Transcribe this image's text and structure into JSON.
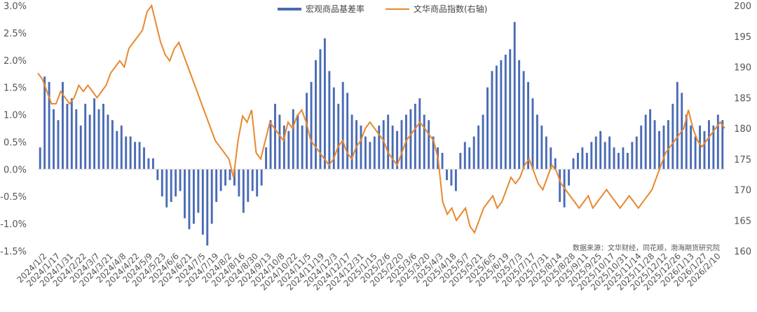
{
  "chart_data": {
    "type": "bar+line",
    "source_note": "数据来源：文华财经，同花顺，渤海期货研究院",
    "legend": {
      "placement": "top-center",
      "items": [
        "宏观商品基差率",
        "文华商品指数(右轴)"
      ]
    },
    "colors": {
      "bar": "#4a6bb5",
      "line": "#e8882e",
      "axis": "#d9d9d9"
    },
    "y_left": {
      "range": [
        -0.015,
        0.03
      ],
      "ticks": [
        -0.015,
        -0.01,
        -0.005,
        0,
        0.005,
        0.01,
        0.015,
        0.02,
        0.025,
        0.03
      ],
      "tick_labels": [
        "-1.5%",
        "-1.0%",
        "-0.5%",
        "0.0%",
        "0.5%",
        "1.0%",
        "1.5%",
        "2.0%",
        "2.5%",
        "3.0%"
      ]
    },
    "y_right": {
      "range": [
        160,
        200
      ],
      "ticks": [
        160,
        165,
        170,
        175,
        180,
        185,
        190,
        195,
        200
      ],
      "tick_labels": [
        "160",
        "165",
        "170",
        "175",
        "180",
        "185",
        "190",
        "195",
        "200"
      ]
    },
    "x_tick_labels": [
      "2024/1/2",
      "2024/1/17",
      "2024/1/31",
      "2024/2/22",
      "2024/3/7",
      "2024/3/21",
      "2024/4/8",
      "2024/4/22",
      "2024/5/9",
      "2024/5/23",
      "2024/6/6",
      "2024/6/21",
      "2024/7/5",
      "2024/7/19",
      "2024/8/2",
      "2024/8/16",
      "2024/8/30",
      "2024/9/13",
      "2024/10/8",
      "2024/10/22",
      "2024/11/5",
      "2024/11/19",
      "2024/12/3",
      "2024/12/17",
      "2024/12/31",
      "2025/1/15",
      "2025/2/6",
      "2025/2/20",
      "2025/3/6",
      "2025/3/20",
      "2025/4/3",
      "2025/4/18",
      "2025/5/7",
      "2025/5/21",
      "2025/6/5",
      "2025/6/19",
      "2025/7/3",
      "2025/7/17",
      "2025/7/31",
      "2025/8/14",
      "2025/8/28",
      "2025/9/11",
      "2025/9/25",
      "2025/10/17",
      "2025/10/31",
      "2025/11/14",
      "2025/11/28",
      "2025/12/12",
      "2025/12/26",
      "2026/1/13",
      "2026/1/27",
      "2026/2/10"
    ],
    "series": [
      {
        "name": "宏观商品基差率",
        "kind": "bar",
        "axis": "left",
        "values": [
          0.004,
          0.017,
          0.016,
          0.011,
          0.009,
          0.016,
          0.012,
          0.013,
          0.011,
          0.008,
          0.012,
          0.01,
          0.013,
          0.011,
          0.012,
          0.01,
          0.009,
          0.007,
          0.008,
          0.006,
          0.006,
          0.005,
          0.005,
          0.004,
          0.002,
          0.002,
          -0.002,
          -0.005,
          -0.007,
          -0.006,
          -0.005,
          -0.004,
          -0.009,
          -0.011,
          -0.01,
          -0.008,
          -0.012,
          -0.014,
          -0.01,
          -0.006,
          -0.004,
          -0.003,
          -0.002,
          -0.003,
          -0.005,
          -0.008,
          -0.006,
          -0.004,
          -0.005,
          -0.003,
          0.004,
          0.009,
          0.012,
          0.01,
          0.008,
          0.007,
          0.011,
          0.01,
          0.008,
          0.014,
          0.016,
          0.02,
          0.022,
          0.024,
          0.018,
          0.015,
          0.012,
          0.016,
          0.014,
          0.01,
          0.009,
          0.008,
          0.006,
          0.005,
          0.006,
          0.008,
          0.009,
          0.01,
          0.008,
          0.007,
          0.009,
          0.01,
          0.011,
          0.012,
          0.013,
          0.01,
          0.009,
          0.006,
          0.004,
          0.003,
          -0.002,
          -0.003,
          -0.004,
          0.003,
          0.005,
          0.004,
          0.006,
          0.008,
          0.01,
          0.015,
          0.018,
          0.019,
          0.02,
          0.021,
          0.022,
          0.027,
          0.02,
          0.018,
          0.016,
          0.013,
          0.01,
          0.008,
          0.006,
          0.004,
          0.002,
          -0.006,
          -0.007,
          -0.003,
          0.002,
          0.003,
          0.004,
          0.003,
          0.005,
          0.006,
          0.007,
          0.005,
          0.006,
          0.004,
          0.003,
          0.004,
          0.003,
          0.005,
          0.006,
          0.008,
          0.01,
          0.011,
          0.009,
          0.007,
          0.008,
          0.009,
          0.012,
          0.016,
          0.014,
          0.01,
          0.008,
          0.006,
          0.008,
          0.007,
          0.009,
          0.008,
          0.01,
          0.009
        ]
      },
      {
        "name": "文华商品指数(右轴)",
        "kind": "line",
        "axis": "right",
        "values": [
          189,
          188,
          186,
          184,
          184,
          186,
          185,
          184,
          185,
          187,
          186,
          187,
          186,
          185,
          186,
          187,
          189,
          190,
          191,
          190,
          193,
          194,
          195,
          196,
          199,
          200,
          197,
          194,
          192,
          191,
          193,
          194,
          192,
          190,
          188,
          186,
          184,
          182,
          180,
          178,
          177,
          176,
          175,
          172,
          178,
          182,
          181,
          183,
          176,
          175,
          178,
          181,
          180,
          179,
          178,
          181,
          180,
          182,
          183,
          181,
          178,
          177,
          176,
          175,
          174,
          175,
          177,
          178,
          176,
          175,
          177,
          178,
          180,
          181,
          180,
          179,
          178,
          176,
          175,
          174,
          176,
          178,
          179,
          180,
          181,
          180,
          179,
          178,
          175,
          168,
          166,
          167,
          165,
          166,
          167,
          164,
          163,
          165,
          167,
          168,
          169,
          167,
          168,
          170,
          172,
          171,
          172,
          174,
          175,
          173,
          171,
          170,
          172,
          174,
          173,
          171,
          170,
          169,
          168,
          167,
          168,
          169,
          167,
          168,
          169,
          170,
          169,
          168,
          167,
          168,
          169,
          168,
          167,
          168,
          169,
          170,
          172,
          174,
          176,
          177,
          178,
          179,
          180,
          183,
          180,
          178,
          177,
          178,
          179,
          180,
          181,
          180
        ]
      }
    ]
  }
}
